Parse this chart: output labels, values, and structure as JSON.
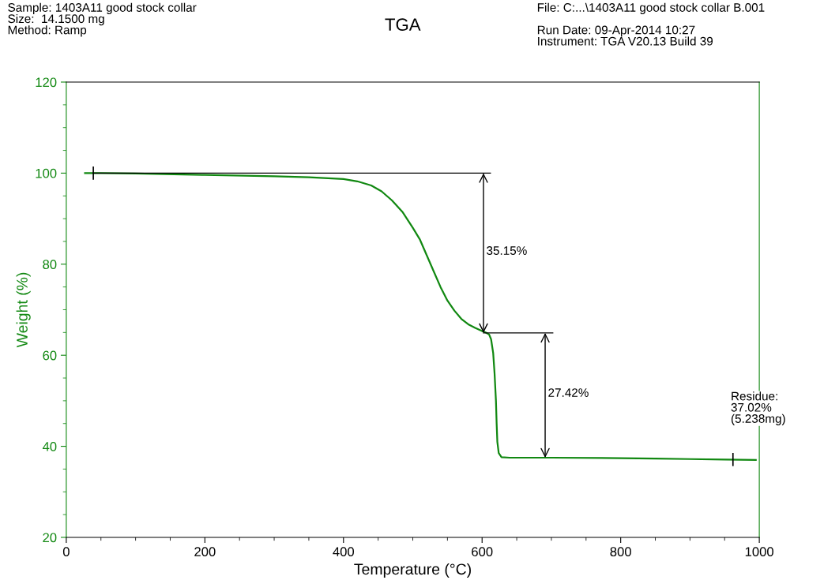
{
  "chart_data": {
    "type": "line",
    "title": "TGA",
    "xlabel": "Temperature (°C)",
    "ylabel": "Weight (%)",
    "xlim": [
      0,
      1000
    ],
    "ylim": [
      20,
      120
    ],
    "xticks": [
      0,
      {
        "value": 50,
        "label": null
      },
      {
        "value": 100,
        "label": null
      },
      {
        "value": 150,
        "label": null
      },
      200,
      {
        "value": 250,
        "label": null
      },
      {
        "value": 300,
        "label": null
      },
      {
        "value": 350,
        "label": null
      },
      400,
      {
        "value": 450,
        "label": null
      },
      {
        "value": 500,
        "label": null
      },
      {
        "value": 550,
        "label": null
      },
      600,
      {
        "value": 650,
        "label": null
      },
      {
        "value": 700,
        "label": null
      },
      {
        "value": 750,
        "label": null
      },
      800,
      {
        "value": 850,
        "label": null
      },
      {
        "value": 900,
        "label": null
      },
      {
        "value": 950,
        "label": null
      },
      1000
    ],
    "yticks": [
      20,
      {
        "value": 25,
        "label": null
      },
      {
        "value": 30,
        "label": null
      },
      {
        "value": 35,
        "label": null
      },
      40,
      {
        "value": 45,
        "label": null
      },
      {
        "value": 50,
        "label": null
      },
      {
        "value": 55,
        "label": null
      },
      60,
      {
        "value": 65,
        "label": null
      },
      {
        "value": 70,
        "label": null
      },
      {
        "value": 75,
        "label": null
      },
      80,
      {
        "value": 85,
        "label": null
      },
      {
        "value": 90,
        "label": null
      },
      {
        "value": 95,
        "label": null
      },
      100,
      {
        "value": 105,
        "label": null
      },
      {
        "value": 110,
        "label": null
      },
      {
        "value": 115,
        "label": null
      },
      120
    ],
    "grid": false,
    "marker": "none",
    "line_style": "solid",
    "series": [
      {
        "color": "#118811",
        "x": [
          27,
          50,
          100,
          200,
          300,
          350,
          400,
          420,
          440,
          455,
          470,
          485,
          500,
          510,
          520,
          530,
          540,
          550,
          560,
          570,
          580,
          590,
          600,
          605,
          610,
          613,
          616,
          618,
          620,
          621,
          622,
          624,
          628,
          640,
          700,
          800,
          850,
          900,
          950,
          995
        ],
        "values": [
          100,
          100,
          99.9,
          99.6,
          99.3,
          99.1,
          98.7,
          98.2,
          97.3,
          96,
          94,
          91.5,
          88,
          85.5,
          82,
          78.5,
          75,
          72,
          69.8,
          68,
          66.8,
          66,
          65.3,
          65,
          64.6,
          63.5,
          60.5,
          56,
          50,
          45,
          41,
          38.5,
          37.6,
          37.5,
          37.5,
          37.4,
          37.3,
          37.2,
          37.1,
          37.0
        ]
      },
      {
        "color": "#000000",
        "x": [
          39,
          612
        ],
        "values": [
          100,
          100
        ]
      },
      {
        "color": "#000000",
        "x": [
          602,
          702
        ],
        "values": [
          64.9,
          64.9
        ]
      },
      {
        "color": "#000000",
        "x": [
          602,
          602
        ],
        "values": [
          100,
          64.9
        ]
      },
      {
        "color": "#000000",
        "x": [
          691,
          691
        ],
        "values": [
          64.9,
          37.5
        ]
      }
    ],
    "annotations": [
      "Sample: 1403A11 good stock collar\nSize:  14.1500 mg\nMethod: Ramp",
      "File: C:...\\1403A11 good stock collar B.001\n\nRun Date: 09-Apr-2014 10:27\nInstrument: TGA V20.13 Build 39",
      {
        "text": "35.15%",
        "x": 602,
        "y": 84
      },
      {
        "text": "27.42%",
        "x": 691,
        "y": 52.8
      },
      {
        "text": "Residue:\n37.02%\n(5.238mg)",
        "x": 962,
        "y": 37.1
      }
    ]
  }
}
